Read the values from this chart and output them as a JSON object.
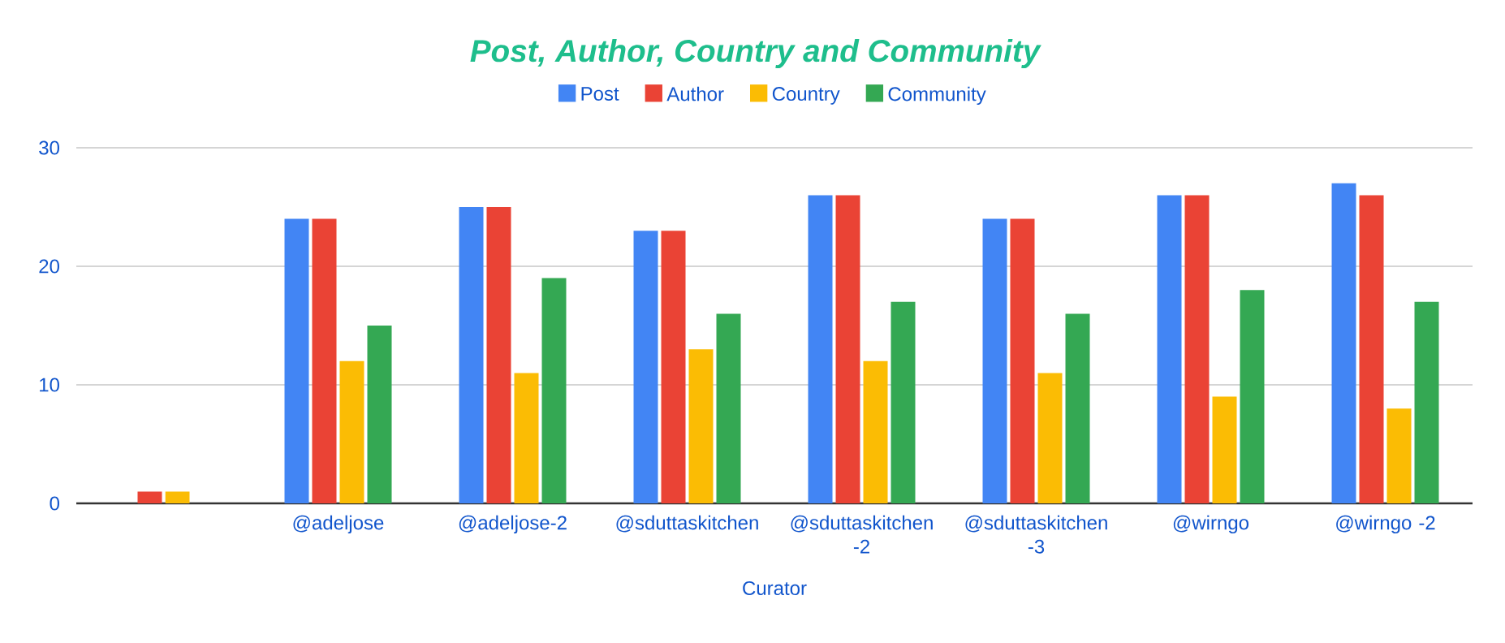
{
  "chart_data": {
    "type": "bar",
    "title": "Post, Author, Country and Community",
    "xlabel": "Curator",
    "categories": [
      null,
      "@adeljose",
      "@adeljose-2",
      "@sduttaskitchen",
      "@sduttaskitchen -2",
      "@sduttaskitchen -3",
      "@wirngo",
      "@wirngo -2"
    ],
    "series": [
      {
        "name": "Post",
        "color": "#4285f4",
        "values": [
          0,
          24,
          25,
          23,
          26,
          24,
          26,
          27
        ]
      },
      {
        "name": "Author",
        "color": "#ea4335",
        "values": [
          1,
          24,
          25,
          23,
          26,
          24,
          26,
          26
        ]
      },
      {
        "name": "Country",
        "color": "#fbbc04",
        "values": [
          1,
          12,
          11,
          13,
          12,
          11,
          9,
          8
        ]
      },
      {
        "name": "Community",
        "color": "#34a853",
        "values": [
          0,
          15,
          19,
          16,
          17,
          16,
          18,
          17
        ]
      }
    ],
    "ylim": [
      0,
      30
    ],
    "yticks": [
      0,
      10,
      20,
      30
    ],
    "grid": "y",
    "legend": "top"
  }
}
